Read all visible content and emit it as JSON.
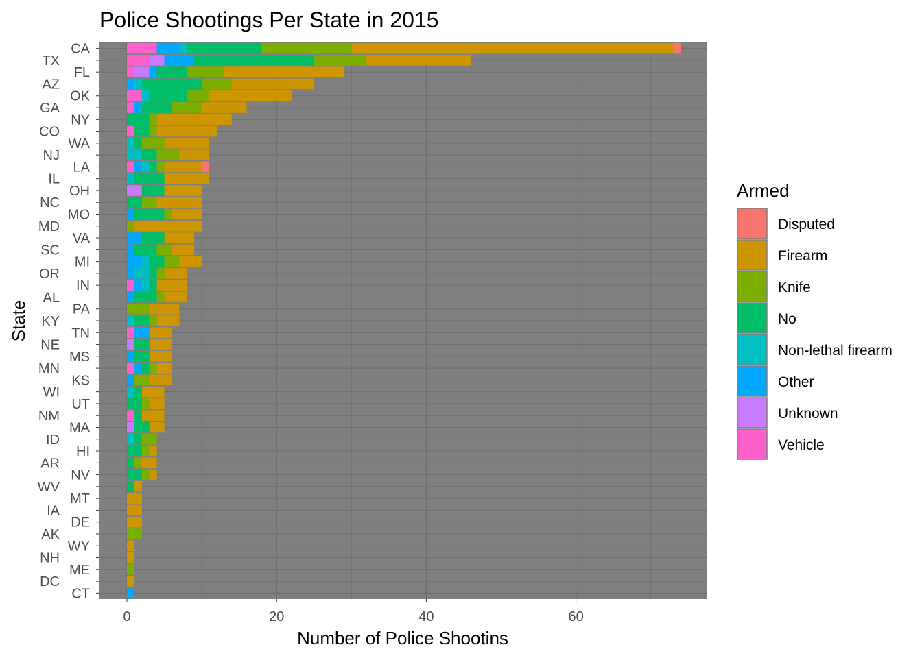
{
  "chart_data": {
    "type": "bar",
    "orientation": "horizontal",
    "stacked": true,
    "title": "Police Shootings Per State in 2015",
    "xlabel": "Number of Police Shootins",
    "ylabel": "State",
    "xlim": [
      -3.5,
      77.5
    ],
    "x_ticks": [
      0,
      20,
      40,
      60
    ],
    "x_tick_labels": [
      "0",
      "20",
      "40",
      "60"
    ],
    "grid": true,
    "panel_background": "#7f7f7f",
    "grid_color": "#6e6e6e",
    "legend": {
      "title": "Armed",
      "position": "right",
      "items": [
        {
          "label": "Disputed",
          "color": "#F8766D"
        },
        {
          "label": "Firearm",
          "color": "#CD9600"
        },
        {
          "label": "Knife",
          "color": "#7CAE00"
        },
        {
          "label": "No",
          "color": "#00BE67"
        },
        {
          "label": "Non-lethal firearm",
          "color": "#00BFC4"
        },
        {
          "label": "Other",
          "color": "#00A9FF"
        },
        {
          "label": "Unknown",
          "color": "#C77CFF"
        },
        {
          "label": "Vehicle",
          "color": "#FF61CC"
        }
      ]
    },
    "stack_order_from_zero": [
      "Vehicle",
      "Unknown",
      "Other",
      "Non-lethal firearm",
      "No",
      "Knife",
      "Firearm",
      "Disputed"
    ],
    "categories": [
      "CA",
      "TX",
      "FL",
      "AZ",
      "OK",
      "GA",
      "NY",
      "CO",
      "WA",
      "NJ",
      "LA",
      "IL",
      "OH",
      "NC",
      "MO",
      "MD",
      "VA",
      "SC",
      "MI",
      "OR",
      "IN",
      "AL",
      "PA",
      "KY",
      "TN",
      "NE",
      "MS",
      "MN",
      "KS",
      "WI",
      "UT",
      "NM",
      "MA",
      "ID",
      "HI",
      "AR",
      "NV",
      "WV",
      "MT",
      "IA",
      "DE",
      "AK",
      "WY",
      "NH",
      "ME",
      "DC",
      "CT"
    ],
    "series": [
      {
        "name": "Vehicle",
        "values": [
          4,
          3,
          1,
          0,
          2,
          1,
          0,
          1,
          0,
          0,
          1,
          0,
          0,
          0,
          0,
          0,
          0,
          0,
          0,
          0,
          1,
          0,
          0,
          0,
          1,
          0,
          0,
          1,
          0,
          0,
          0,
          1,
          0,
          0,
          0,
          0,
          0,
          0,
          0,
          0,
          0,
          0,
          0,
          0,
          0,
          0,
          0
        ]
      },
      {
        "name": "Unknown",
        "values": [
          0,
          2,
          2,
          0,
          0,
          0,
          0,
          0,
          0,
          0,
          0,
          0,
          2,
          0,
          0,
          0,
          0,
          0,
          0,
          0,
          0,
          0,
          0,
          0,
          0,
          1,
          0,
          0,
          0,
          0,
          0,
          0,
          1,
          0,
          0,
          0,
          0,
          0,
          0,
          0,
          0,
          0,
          0,
          0,
          0,
          0,
          0
        ]
      },
      {
        "name": "Other",
        "values": [
          3,
          4,
          1,
          1,
          0,
          1,
          0,
          0,
          0,
          0,
          1,
          0,
          0,
          0,
          1,
          0,
          2,
          1,
          2,
          1,
          1,
          1,
          0,
          0,
          2,
          0,
          1,
          1,
          1,
          0,
          0,
          0,
          0,
          0,
          0,
          0,
          0,
          0,
          0,
          0,
          0,
          0,
          0,
          0,
          0,
          0,
          1
        ]
      },
      {
        "name": "Non-lethal firearm",
        "values": [
          1,
          0,
          0,
          1,
          1,
          0,
          0,
          0,
          1,
          2,
          1,
          1,
          0,
          0,
          0,
          0,
          0,
          0,
          1,
          2,
          1,
          0,
          0,
          1,
          0,
          0,
          0,
          0,
          0,
          1,
          0,
          0,
          0,
          1,
          0,
          0,
          0,
          0,
          0,
          0,
          0,
          0,
          0,
          0,
          0,
          0,
          0
        ]
      },
      {
        "name": "No",
        "values": [
          10,
          16,
          4,
          8,
          5,
          4,
          3,
          2,
          1,
          2,
          1,
          4,
          3,
          2,
          4,
          0,
          3,
          3,
          2,
          1,
          1,
          3,
          0,
          2,
          0,
          2,
          2,
          1,
          0,
          1,
          2,
          1,
          2,
          1,
          2,
          1,
          2,
          1,
          0,
          0,
          0,
          0,
          0,
          0,
          0,
          0,
          0
        ]
      },
      {
        "name": "Knife",
        "values": [
          12,
          7,
          5,
          4,
          3,
          4,
          1,
          1,
          3,
          3,
          1,
          0,
          0,
          2,
          1,
          1,
          0,
          2,
          2,
          1,
          0,
          1,
          3,
          1,
          0,
          0,
          0,
          1,
          2,
          0,
          1,
          0,
          0,
          2,
          1,
          1,
          1,
          0,
          0,
          0,
          0,
          2,
          0,
          0,
          1,
          0,
          0
        ]
      },
      {
        "name": "Firearm",
        "values": [
          43,
          14,
          16,
          11,
          11,
          6,
          10,
          8,
          6,
          4,
          5,
          6,
          5,
          6,
          4,
          9,
          4,
          3,
          3,
          3,
          4,
          3,
          4,
          3,
          3,
          3,
          3,
          2,
          3,
          3,
          2,
          3,
          2,
          0,
          1,
          2,
          1,
          1,
          2,
          2,
          2,
          0,
          1,
          1,
          0,
          1,
          0
        ]
      },
      {
        "name": "Disputed",
        "values": [
          1,
          0,
          0,
          0,
          0,
          0,
          0,
          0,
          0,
          0,
          1,
          0,
          0,
          0,
          0,
          0,
          0,
          0,
          0,
          0,
          0,
          0,
          0,
          0,
          0,
          0,
          0,
          0,
          0,
          0,
          0,
          0,
          0,
          0,
          0,
          0,
          0,
          0,
          0,
          0,
          0,
          0,
          0,
          0,
          0,
          0,
          0
        ]
      }
    ]
  }
}
